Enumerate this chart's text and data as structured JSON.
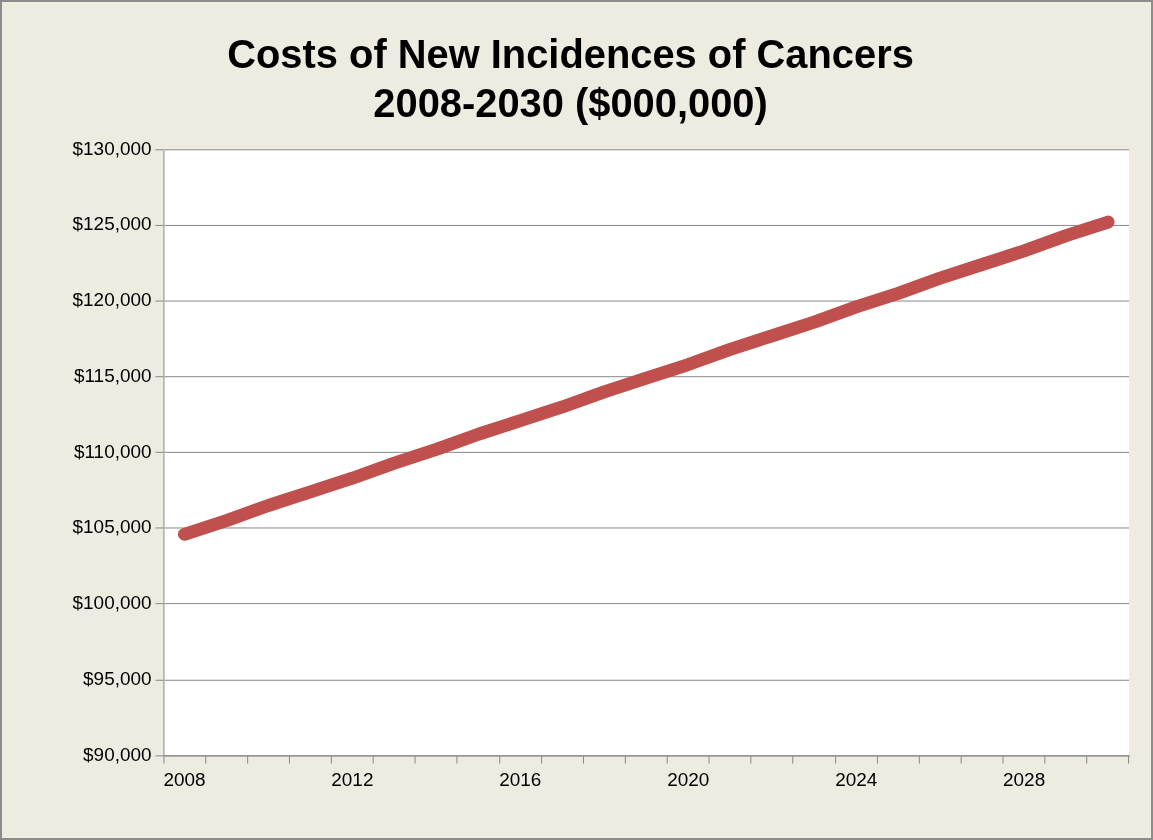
{
  "chart_data": {
    "type": "line",
    "title": "Costs of New Incidences of Cancers\n2008-2030 ($000,000)",
    "categories": [
      "2008",
      null,
      null,
      null,
      "2012",
      null,
      null,
      null,
      "2016",
      null,
      null,
      null,
      "2020",
      null,
      null,
      null,
      "2024",
      null,
      null,
      null,
      "2028",
      null,
      null
    ],
    "series": [
      {
        "color": "#c0504d",
        "values": [
          104600,
          105500,
          106500,
          107400,
          108300,
          109300,
          110200,
          111200,
          112100,
          113000,
          114000,
          114900,
          115800,
          116800,
          117700,
          118600,
          119600,
          120500,
          121500,
          122400,
          123300,
          124300,
          125200
        ]
      }
    ],
    "ylim": [
      90000,
      130000
    ],
    "yticks": [
      {
        "value": 90000,
        "label": "$90,000"
      },
      {
        "value": 95000,
        "label": "$95,000"
      },
      {
        "value": 100000,
        "label": "$100,000"
      },
      {
        "value": 105000,
        "label": "$105,000"
      },
      {
        "value": 110000,
        "label": "$110,000"
      },
      {
        "value": 115000,
        "label": "$115,000"
      },
      {
        "value": 120000,
        "label": "$120,000"
      },
      {
        "value": 125000,
        "label": "$125,000"
      },
      {
        "value": 130000,
        "label": "$130,000"
      }
    ],
    "grid": "y",
    "legend": false,
    "marker": "none",
    "line_style": "solid"
  }
}
